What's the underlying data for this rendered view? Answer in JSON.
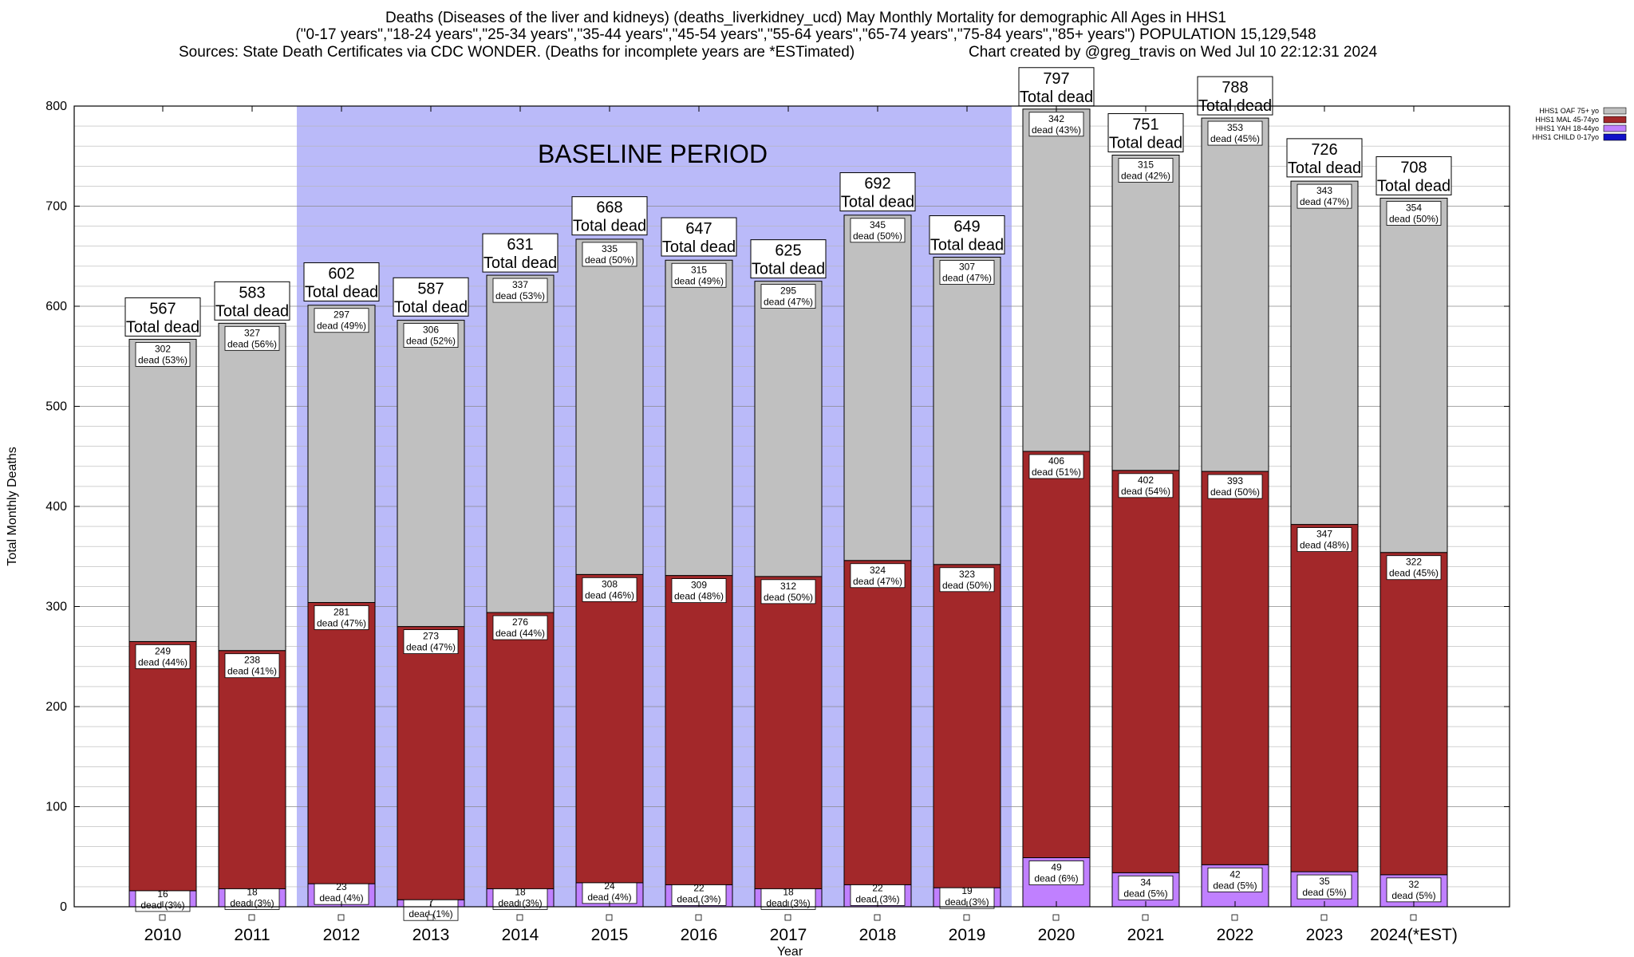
{
  "chart_data": {
    "type": "bar",
    "stacked": true,
    "title_lines": [
      "Deaths (Diseases of the liver and kidneys) (deaths_liverkidney_ucd) May Monthly Mortality for demographic All Ages in HHS1",
      "(\"0-17 years\",\"18-24 years\",\"25-34 years\",\"35-44 years\",\"45-54 years\",\"55-64 years\",\"65-74 years\",\"75-84 years\",\"85+ years\") POPULATION 15,129,548"
    ],
    "source_text": "Sources: State Death Certificates via CDC WONDER. (Deaths for incomplete years are *ESTimated)",
    "credit_text": "Chart created by @greg_travis on Wed Jul 10 22:12:31 2024",
    "xlabel": "Year",
    "ylabel": "Total Monthly Deaths",
    "ylim": [
      0,
      800
    ],
    "yticks": [
      0,
      100,
      200,
      300,
      400,
      500,
      600,
      700,
      800
    ],
    "grid": true,
    "baseline_label": "BASELINE PERIOD",
    "baseline_range": [
      "2012",
      "2019"
    ],
    "total_word": "Total dead",
    "dead_word": "dead",
    "categories": [
      "2010",
      "2011",
      "2012",
      "2013",
      "2014",
      "2015",
      "2016",
      "2017",
      "2018",
      "2019",
      "2020",
      "2021",
      "2022",
      "2023",
      "2024(*EST)"
    ],
    "totals": [
      567,
      583,
      602,
      587,
      631,
      668,
      647,
      625,
      692,
      649,
      797,
      751,
      788,
      726,
      708
    ],
    "series": [
      {
        "name": "HHS1 CHILD 0-17yo",
        "color": "#1010c8",
        "values": [
          0,
          0,
          0,
          0,
          0,
          0,
          0,
          0,
          0,
          0,
          0,
          0,
          0,
          0,
          0
        ],
        "pcts": [],
        "show_label": false
      },
      {
        "name": "HHS1 YAH 18-44yo",
        "color": "#c080ff",
        "values": [
          16,
          18,
          23,
          7,
          18,
          24,
          22,
          18,
          22,
          19,
          49,
          34,
          42,
          35,
          32
        ],
        "pcts": [
          "3%",
          "3%",
          "4%",
          "1%",
          "3%",
          "4%",
          "3%",
          "3%",
          "3%",
          "3%",
          "6%",
          "5%",
          "5%",
          "5%",
          "5%"
        ],
        "show_label": true
      },
      {
        "name": "HHS1 MAL 45-74yo",
        "color": "#a3282a",
        "values": [
          249,
          238,
          281,
          273,
          276,
          308,
          309,
          312,
          324,
          323,
          406,
          402,
          393,
          347,
          322
        ],
        "pcts": [
          "44%",
          "41%",
          "47%",
          "47%",
          "44%",
          "46%",
          "48%",
          "50%",
          "47%",
          "50%",
          "51%",
          "54%",
          "50%",
          "48%",
          "45%"
        ],
        "show_label": true
      },
      {
        "name": "HHS1 OAF 75+ yo",
        "color": "#c0c0c0",
        "values": [
          302,
          327,
          297,
          306,
          337,
          335,
          315,
          295,
          345,
          307,
          342,
          315,
          353,
          343,
          354
        ],
        "pcts": [
          "53%",
          "56%",
          "49%",
          "52%",
          "53%",
          "50%",
          "49%",
          "47%",
          "50%",
          "47%",
          "43%",
          "42%",
          "45%",
          "47%",
          "50%"
        ],
        "show_label": true
      }
    ],
    "legend_order": [
      "HHS1 OAF 75+ yo",
      "HHS1 MAL 45-74yo",
      "HHS1 YAH 18-44yo",
      "HHS1 CHILD 0-17yo"
    ],
    "legend_position": "top-right"
  }
}
